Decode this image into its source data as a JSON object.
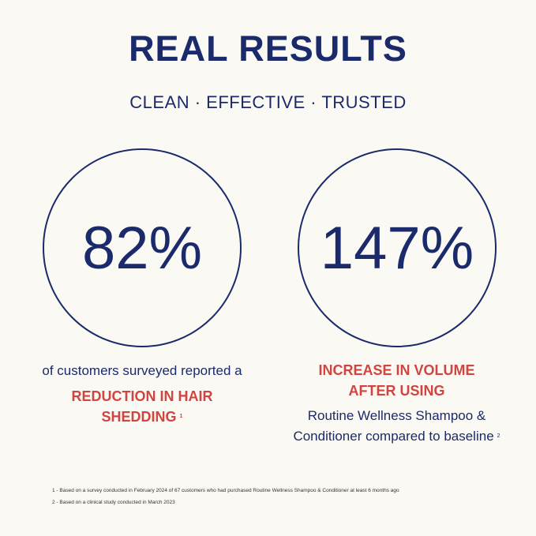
{
  "title": "REAL RESULTS",
  "subtitle": "CLEAN · EFFECTIVE · TRUSTED",
  "colors": {
    "navy": "#1b2a6b",
    "red": "#d0453f",
    "background": "#fbf9f4"
  },
  "stats": [
    {
      "value": "82%",
      "lead": "of customers surveyed reported a",
      "highlight_1": "REDUCTION IN HAIR",
      "highlight_2": "SHEDDING",
      "footnote_ref": "1"
    },
    {
      "value": "147%",
      "highlight_1": "INCREASE IN VOLUME",
      "highlight_2": "AFTER USING",
      "detail_1": "Routine Wellness Shampoo &",
      "detail_2": "Conditioner compared to baseline",
      "footnote_ref": "2"
    }
  ],
  "footnotes": [
    "1 -  Based on a survey conducted in February 2024 of 67 customers who had purchased Routine Wellness Shampoo & Conditioner at least 6 months ago",
    "2 - Based on a clinical study conducted in March 2023"
  ]
}
